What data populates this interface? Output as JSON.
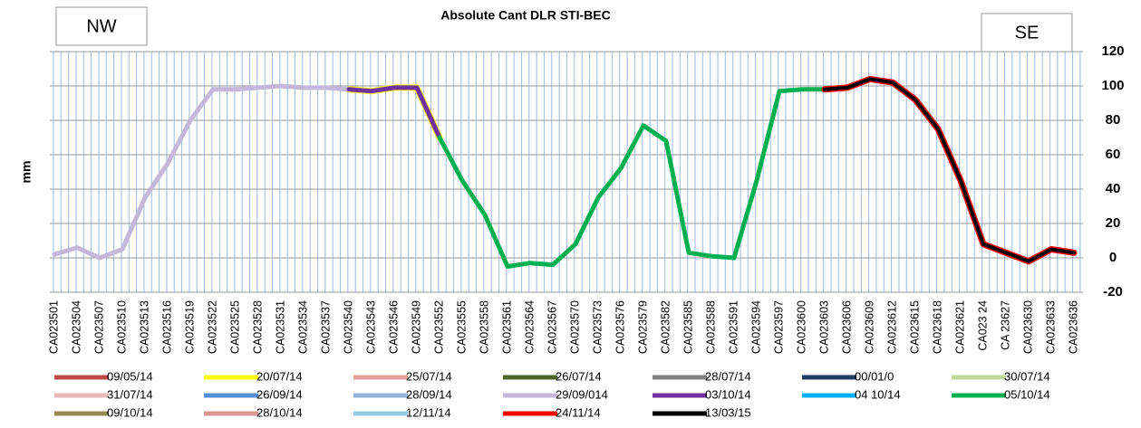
{
  "chart_data": {
    "type": "line",
    "title": "Absolute  Cant  DLR STI-BEC",
    "ylabel": "mm",
    "annotations": [
      "NW",
      "SE"
    ],
    "categories": [
      "CA023501",
      "CA023504",
      "CA023507",
      "CA023510",
      "CA023513",
      "CA023516",
      "CA023519",
      "CA023522",
      "CA023525",
      "CA023528",
      "CA023531",
      "CA023534",
      "CA023537",
      "CA023540",
      "CA023543",
      "CA023546",
      "CA023549",
      "CA023552",
      "CA023555",
      "CA023558",
      "CA023561",
      "CA023564",
      "CA023567",
      "CA023570",
      "CA023573",
      "CA023576",
      "CA023579",
      "CA023582",
      "CA023585",
      "CA023588",
      "CA023591",
      "CA023594",
      "CA023597",
      "CA023600",
      "CA023603",
      "CA023606",
      "CA023609",
      "CA023612",
      "CA023615",
      "CA023618",
      "CA023621",
      "CA023 24",
      "CA 23627",
      "CA023630",
      "CA023633",
      "CA023636"
    ],
    "ylim": [
      -20,
      120
    ],
    "yticks": [
      -20,
      0,
      20,
      40,
      60,
      80,
      100,
      120
    ],
    "grid": true,
    "series": [
      {
        "name": "09/05/14",
        "color": "#be4b48",
        "values": [
          null,
          null,
          null,
          null,
          null,
          null,
          null,
          null,
          null,
          null,
          null,
          null,
          null,
          null,
          null,
          null,
          null,
          null,
          null,
          null,
          null,
          null,
          null,
          null,
          null,
          null,
          null,
          null,
          null,
          null,
          null,
          null,
          null,
          null,
          null,
          null,
          null,
          null,
          null,
          null,
          null,
          null,
          null,
          null,
          null,
          null
        ]
      },
      {
        "name": "20/07/14",
        "color": "#ffff00",
        "values": [
          null,
          null,
          null,
          null,
          null,
          null,
          null,
          null,
          null,
          null,
          null,
          null,
          null,
          98,
          97,
          99,
          99,
          70,
          null,
          null,
          null,
          null,
          null,
          null,
          null,
          null,
          null,
          null,
          null,
          null,
          null,
          null,
          null,
          null,
          null,
          null,
          null,
          null,
          null,
          null,
          null,
          null,
          null,
          null,
          null,
          null
        ]
      },
      {
        "name": "25/07/14",
        "color": "#e6a0a0",
        "values": [
          null,
          null,
          null,
          null,
          null,
          null,
          null,
          null,
          null,
          null,
          null,
          null,
          null,
          null,
          null,
          null,
          null,
          null,
          null,
          null,
          null,
          null,
          null,
          null,
          null,
          null,
          null,
          null,
          null,
          null,
          null,
          null,
          null,
          null,
          null,
          null,
          null,
          null,
          null,
          null,
          null,
          null,
          null,
          null,
          null,
          null
        ]
      },
      {
        "name": "26/07/14",
        "color": "#4f6228",
        "values": [
          null,
          null,
          null,
          null,
          null,
          null,
          null,
          null,
          null,
          null,
          null,
          null,
          null,
          null,
          null,
          null,
          null,
          null,
          null,
          null,
          null,
          null,
          null,
          null,
          null,
          null,
          null,
          null,
          null,
          null,
          null,
          null,
          null,
          null,
          null,
          null,
          null,
          null,
          null,
          null,
          null,
          null,
          null,
          null,
          null,
          null
        ]
      },
      {
        "name": "28/07/14",
        "color": "#7f7f7f",
        "values": [
          null,
          null,
          null,
          null,
          null,
          null,
          null,
          null,
          null,
          null,
          null,
          null,
          null,
          null,
          null,
          null,
          null,
          null,
          null,
          null,
          null,
          null,
          null,
          null,
          null,
          null,
          null,
          null,
          null,
          null,
          null,
          null,
          null,
          null,
          null,
          null,
          null,
          null,
          null,
          null,
          null,
          null,
          null,
          null,
          null,
          null
        ]
      },
      {
        "name": "00/01/0",
        "color": "#1f3864",
        "values": [
          null,
          null,
          null,
          null,
          null,
          null,
          null,
          null,
          null,
          null,
          null,
          null,
          null,
          null,
          null,
          null,
          null,
          null,
          null,
          null,
          null,
          null,
          null,
          null,
          null,
          null,
          null,
          null,
          null,
          null,
          null,
          null,
          null,
          null,
          null,
          null,
          null,
          null,
          null,
          null,
          null,
          null,
          null,
          null,
          null,
          null
        ]
      },
      {
        "name": "30/07/14",
        "color": "#c4d79b",
        "values": [
          null,
          null,
          null,
          null,
          null,
          null,
          null,
          null,
          null,
          null,
          null,
          null,
          null,
          null,
          null,
          null,
          null,
          null,
          null,
          null,
          null,
          null,
          null,
          null,
          null,
          null,
          null,
          null,
          null,
          null,
          null,
          null,
          null,
          null,
          null,
          null,
          null,
          null,
          null,
          null,
          null,
          null,
          null,
          null,
          null,
          null
        ]
      },
      {
        "name": "31/07/14",
        "color": "#e6b9b8",
        "values": [
          null,
          null,
          null,
          null,
          null,
          null,
          null,
          null,
          null,
          null,
          null,
          null,
          null,
          null,
          null,
          null,
          null,
          null,
          null,
          null,
          null,
          null,
          null,
          null,
          null,
          null,
          null,
          null,
          null,
          null,
          null,
          null,
          null,
          null,
          null,
          null,
          null,
          null,
          null,
          null,
          null,
          null,
          null,
          null,
          null,
          null
        ]
      },
      {
        "name": "26/09/14",
        "color": "#558ed5",
        "values": [
          null,
          null,
          null,
          null,
          null,
          null,
          null,
          null,
          null,
          null,
          null,
          null,
          null,
          null,
          null,
          null,
          null,
          null,
          null,
          null,
          null,
          null,
          null,
          null,
          null,
          null,
          null,
          null,
          null,
          null,
          null,
          null,
          null,
          null,
          null,
          null,
          null,
          null,
          null,
          null,
          null,
          null,
          null,
          null,
          null,
          null
        ]
      },
      {
        "name": "28/09/14",
        "color": "#95b3d7",
        "values": [
          null,
          null,
          null,
          null,
          null,
          null,
          null,
          null,
          null,
          null,
          null,
          null,
          null,
          null,
          null,
          null,
          null,
          null,
          null,
          null,
          null,
          null,
          null,
          null,
          null,
          null,
          null,
          null,
          null,
          null,
          null,
          null,
          null,
          null,
          null,
          null,
          null,
          null,
          null,
          null,
          null,
          null,
          null,
          null,
          null,
          null
        ]
      },
      {
        "name": "29/09/014",
        "color": "#c3b8dc",
        "values": [
          2,
          6,
          0,
          5,
          35,
          55,
          80,
          98,
          98,
          99,
          100,
          99,
          99,
          98,
          null,
          null,
          null,
          null,
          null,
          null,
          null,
          null,
          null,
          null,
          null,
          null,
          null,
          null,
          null,
          null,
          null,
          null,
          null,
          null,
          null,
          null,
          null,
          null,
          null,
          null,
          null,
          null,
          null,
          null,
          null,
          null
        ]
      },
      {
        "name": "03/10/14",
        "color": "#7030a0",
        "values": [
          null,
          null,
          null,
          null,
          null,
          null,
          null,
          null,
          null,
          null,
          null,
          null,
          null,
          98,
          97,
          99,
          99,
          70,
          null,
          null,
          null,
          null,
          null,
          null,
          null,
          null,
          null,
          null,
          null,
          null,
          null,
          null,
          null,
          null,
          null,
          null,
          null,
          null,
          null,
          null,
          null,
          null,
          null,
          null,
          null,
          null
        ]
      },
      {
        "name": "04 10/14",
        "color": "#00b0f0",
        "values": [
          null,
          null,
          null,
          null,
          null,
          null,
          null,
          null,
          null,
          null,
          null,
          null,
          null,
          null,
          null,
          null,
          null,
          null,
          null,
          null,
          null,
          null,
          null,
          null,
          null,
          null,
          null,
          null,
          null,
          null,
          null,
          null,
          null,
          null,
          null,
          null,
          null,
          null,
          null,
          null,
          null,
          null,
          null,
          null,
          null,
          null
        ]
      },
      {
        "name": "05/10/14",
        "color": "#00b050",
        "values": [
          null,
          null,
          null,
          null,
          null,
          null,
          null,
          null,
          null,
          null,
          null,
          null,
          null,
          null,
          null,
          null,
          null,
          70,
          45,
          25,
          -5,
          -3,
          -4,
          8,
          35,
          52,
          77,
          68,
          3,
          1,
          0,
          45,
          97,
          98,
          98,
          null,
          null,
          null,
          null,
          null,
          null,
          null,
          null,
          null,
          null,
          null
        ]
      },
      {
        "name": "09/10/14",
        "color": "#948a54",
        "values": [
          null,
          null,
          null,
          null,
          null,
          null,
          null,
          null,
          null,
          null,
          null,
          null,
          null,
          null,
          null,
          null,
          null,
          null,
          null,
          null,
          null,
          null,
          null,
          null,
          null,
          null,
          null,
          null,
          null,
          null,
          null,
          null,
          null,
          null,
          null,
          null,
          null,
          null,
          null,
          null,
          null,
          null,
          null,
          null,
          null,
          null
        ]
      },
      {
        "name": "28/10/14",
        "color": "#d99694",
        "values": [
          null,
          null,
          null,
          null,
          null,
          null,
          null,
          null,
          null,
          null,
          null,
          null,
          null,
          null,
          null,
          null,
          null,
          null,
          null,
          null,
          null,
          null,
          null,
          null,
          null,
          null,
          null,
          null,
          null,
          null,
          null,
          null,
          null,
          null,
          null,
          null,
          null,
          null,
          null,
          null,
          null,
          null,
          null,
          null,
          null,
          null
        ]
      },
      {
        "name": "12/11/14",
        "color": "#92cddc",
        "values": [
          null,
          null,
          null,
          null,
          null,
          null,
          null,
          null,
          null,
          null,
          null,
          null,
          null,
          null,
          null,
          null,
          null,
          null,
          null,
          null,
          null,
          null,
          null,
          null,
          null,
          null,
          null,
          null,
          null,
          null,
          null,
          null,
          null,
          null,
          null,
          null,
          null,
          null,
          null,
          null,
          null,
          null,
          null,
          null,
          null,
          null
        ]
      },
      {
        "name": "24/11/14",
        "color": "#ff0000",
        "values": [
          null,
          null,
          null,
          null,
          null,
          null,
          null,
          null,
          null,
          null,
          null,
          null,
          null,
          null,
          null,
          null,
          null,
          null,
          null,
          null,
          null,
          null,
          null,
          null,
          null,
          null,
          null,
          null,
          null,
          null,
          null,
          null,
          null,
          null,
          98,
          99,
          104,
          102,
          92,
          75,
          45,
          8,
          3,
          -2,
          5,
          3
        ]
      },
      {
        "name": "13/03/15",
        "color": "#000000",
        "values": [
          null,
          null,
          null,
          null,
          null,
          null,
          null,
          null,
          null,
          null,
          null,
          null,
          null,
          null,
          null,
          null,
          null,
          null,
          null,
          null,
          null,
          null,
          null,
          null,
          null,
          null,
          null,
          null,
          null,
          null,
          null,
          null,
          null,
          null,
          98,
          99,
          104,
          102,
          92,
          75,
          45,
          8,
          3,
          -2,
          5,
          3
        ]
      }
    ]
  }
}
